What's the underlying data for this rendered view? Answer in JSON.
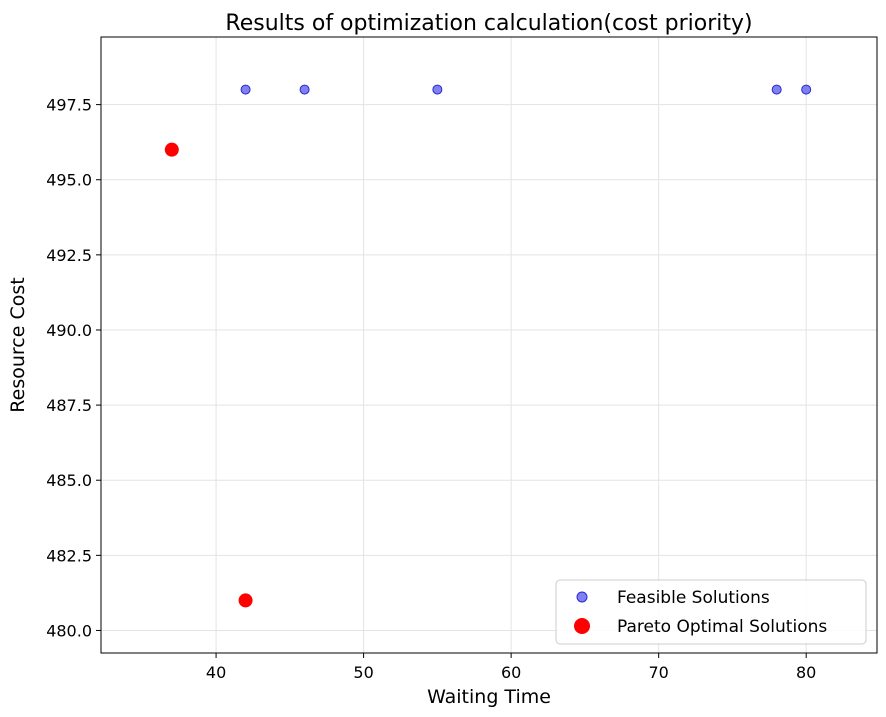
{
  "chart_data": {
    "type": "scatter",
    "title": "Results of optimization calculation(cost priority)",
    "xlabel": "Waiting Time",
    "ylabel": "Resource Cost",
    "xlim": [
      32.2,
      84.8
    ],
    "ylim": [
      479.25,
      499.75
    ],
    "xticks": [
      40,
      50,
      60,
      70,
      80
    ],
    "yticks": [
      480.0,
      482.5,
      485.0,
      487.5,
      490.0,
      492.5,
      495.0,
      497.5
    ],
    "grid": true,
    "legend_position": "lower-right",
    "series": [
      {
        "name": "Feasible Solutions",
        "color": "#5555ee",
        "points": [
          [
            42,
            498
          ],
          [
            46,
            498
          ],
          [
            55,
            498
          ],
          [
            78,
            498
          ],
          [
            80,
            498
          ]
        ]
      },
      {
        "name": "Pareto Optimal Solutions",
        "color": "#ff0000",
        "points": [
          [
            37,
            496
          ],
          [
            42,
            481
          ]
        ]
      }
    ]
  }
}
